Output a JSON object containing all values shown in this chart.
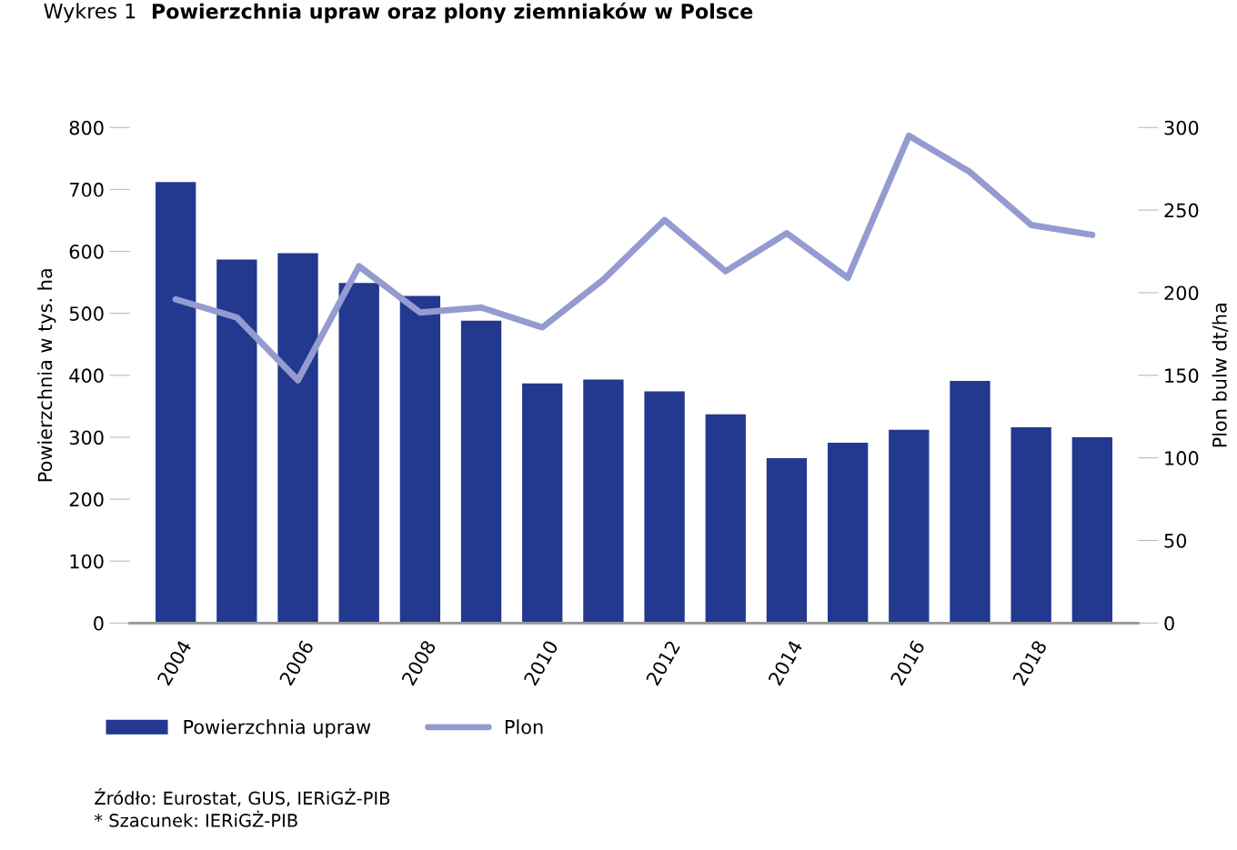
{
  "chart_data": {
    "type": "bar",
    "title": "Powierzchnia upraw oraz plony ziemniaków w Polsce",
    "ylabel": "Powierzchnia w tys. ha",
    "y2label": "Plon bulw dt/ha",
    "categories": [
      "2004",
      null,
      "2006",
      null,
      "2008",
      null,
      "2010",
      null,
      "2012",
      null,
      "2014",
      null,
      "2016",
      null,
      "2018",
      null
    ],
    "series": [
      {
        "name": "Powierzchnia upraw",
        "color": "#22398f",
        "values": [
          712,
          587,
          597,
          549,
          528,
          488,
          387,
          393,
          374,
          337,
          266,
          291,
          312,
          391,
          316,
          300
        ]
      },
      {
        "name": "Plon",
        "type": "line",
        "axis": "y2",
        "color": "#949bd0",
        "values": [
          196,
          185,
          147,
          216,
          188,
          191,
          179,
          208,
          244,
          213,
          236,
          209,
          295,
          273,
          241,
          235
        ]
      }
    ],
    "ylim": [
      0,
      800
    ],
    "yticks": [
      0,
      100,
      200,
      300,
      400,
      500,
      600,
      700,
      800
    ],
    "y2lim": [
      0,
      300
    ],
    "y2ticks": [
      0,
      50,
      100,
      150,
      200,
      250,
      300
    ],
    "grid": false,
    "legend": "bottom left",
    "marker": "none",
    "line_style": "solid",
    "annotations": [
      "Wykres 1",
      "Źródło: Eurostat, GUS, IERiGŻ-PIB",
      "* Szacunek: IERiGŻ-PIB"
    ]
  }
}
